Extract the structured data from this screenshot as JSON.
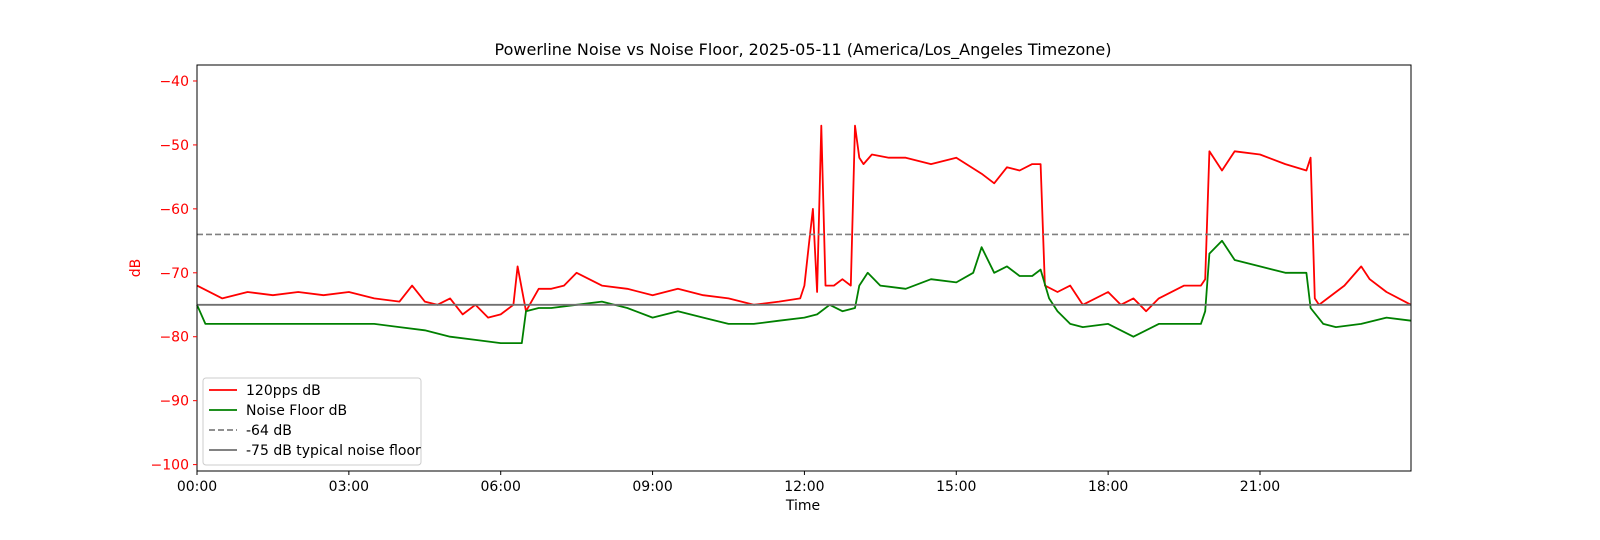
{
  "chart_data": {
    "type": "line",
    "title": "Powerline Noise vs Noise Floor, 2025-05-11 (America/Los_Angeles Timezone)",
    "xlabel": "Time",
    "ylabel": "dB",
    "ylabel_color": "#ff0000",
    "ylim": [
      -101,
      -37.5
    ],
    "xlim": [
      "00:00",
      "23:59"
    ],
    "yticks": [
      -40,
      -50,
      -60,
      -70,
      -80,
      -90,
      -100
    ],
    "ytick_labels": [
      "−40",
      "−50",
      "−60",
      "−70",
      "−80",
      "−90",
      "−100"
    ],
    "xtick_labels": [
      "00:00",
      "03:00",
      "06:00",
      "09:00",
      "12:00",
      "15:00",
      "18:00",
      "21:00"
    ],
    "grid": false,
    "legend_position": "lower-left",
    "series": [
      {
        "name": "120pps dB",
        "color": "#ff0000",
        "style": "solid",
        "x": [
          "00:00",
          "00:30",
          "01:00",
          "01:30",
          "02:00",
          "02:30",
          "03:00",
          "03:30",
          "04:00",
          "04:15",
          "04:30",
          "04:45",
          "05:00",
          "05:15",
          "05:30",
          "05:45",
          "06:00",
          "06:15",
          "06:20",
          "06:30",
          "06:45",
          "07:00",
          "07:15",
          "07:30",
          "08:00",
          "08:30",
          "09:00",
          "09:30",
          "10:00",
          "10:30",
          "11:00",
          "11:30",
          "11:55",
          "12:00",
          "12:05",
          "12:10",
          "12:15",
          "12:20",
          "12:25",
          "12:30",
          "12:35",
          "12:45",
          "12:55",
          "13:00",
          "13:05",
          "13:10",
          "13:20",
          "13:40",
          "14:00",
          "14:30",
          "15:00",
          "15:30",
          "15:45",
          "16:00",
          "16:15",
          "16:30",
          "16:40",
          "16:45",
          "17:00",
          "17:15",
          "17:30",
          "18:00",
          "18:15",
          "18:30",
          "18:45",
          "19:00",
          "19:30",
          "19:50",
          "19:55",
          "20:00",
          "20:15",
          "20:30",
          "21:00",
          "21:30",
          "21:55",
          "22:00",
          "22:05",
          "22:10",
          "22:20",
          "22:40",
          "23:00",
          "23:10",
          "23:30",
          "23:59"
        ],
        "values": [
          -72,
          -74,
          -73,
          -73.5,
          -73,
          -73.5,
          -73,
          -74,
          -74.5,
          -72,
          -74.5,
          -75,
          -74,
          -76.5,
          -75,
          -77,
          -76.5,
          -75,
          -69,
          -76,
          -72.5,
          -72.5,
          -72,
          -70,
          -72,
          -72.5,
          -73.5,
          -72.5,
          -73.5,
          -74,
          -75,
          -74.5,
          -74,
          -72,
          -66,
          -60,
          -73,
          -47,
          -72,
          -72,
          -72,
          -71,
          -72,
          -47,
          -52,
          -53,
          -51.5,
          -52,
          -52,
          -53,
          -52,
          -54.5,
          -56,
          -53.5,
          -54,
          -53,
          -53,
          -72,
          -73,
          -72,
          -75,
          -73,
          -75,
          -74,
          -76,
          -74,
          -72,
          -72,
          -71,
          -51,
          -54,
          -51,
          -51.5,
          -53,
          -54,
          -52,
          -74,
          -75,
          -74,
          -72,
          -69,
          -71,
          -73,
          -75
        ]
      },
      {
        "name": "Noise Floor dB",
        "color": "#008000",
        "style": "solid",
        "x": [
          "00:00",
          "00:10",
          "01:00",
          "02:00",
          "03:00",
          "03:30",
          "04:00",
          "04:30",
          "05:00",
          "05:30",
          "06:00",
          "06:25",
          "06:30",
          "06:45",
          "07:00",
          "07:30",
          "08:00",
          "08:30",
          "09:00",
          "09:30",
          "10:00",
          "10:30",
          "11:00",
          "11:30",
          "12:00",
          "12:15",
          "12:30",
          "12:45",
          "13:00",
          "13:05",
          "13:15",
          "13:30",
          "14:00",
          "14:30",
          "15:00",
          "15:20",
          "15:30",
          "15:45",
          "16:00",
          "16:15",
          "16:30",
          "16:40",
          "16:50",
          "17:00",
          "17:15",
          "17:30",
          "18:00",
          "18:30",
          "19:00",
          "19:30",
          "19:50",
          "19:55",
          "20:00",
          "20:15",
          "20:30",
          "21:00",
          "21:30",
          "21:55",
          "22:00",
          "22:15",
          "22:30",
          "23:00",
          "23:30",
          "23:59"
        ],
        "values": [
          -75,
          -78,
          -78,
          -78,
          -78,
          -78,
          -78.5,
          -79,
          -80,
          -80.5,
          -81,
          -81,
          -76,
          -75.5,
          -75.5,
          -75,
          -74.5,
          -75.5,
          -77,
          -76,
          -77,
          -78,
          -78,
          -77.5,
          -77,
          -76.5,
          -75,
          -76,
          -75.5,
          -72,
          -70,
          -72,
          -72.5,
          -71,
          -71.5,
          -70,
          -66,
          -70,
          -69,
          -70.5,
          -70.5,
          -69.5,
          -74,
          -76,
          -78,
          -78.5,
          -78,
          -80,
          -78,
          -78,
          -78,
          -76,
          -67,
          -65,
          -68,
          -69,
          -70,
          -70,
          -75.5,
          -78,
          -78.5,
          -78,
          -77,
          -77.5
        ]
      },
      {
        "name": "-64 dB",
        "color": "#808080",
        "style": "dashed",
        "x": [
          "00:00",
          "23:59"
        ],
        "values": [
          -64,
          -64
        ]
      },
      {
        "name": "-75 dB typical noise floor",
        "color": "#707070",
        "style": "solid",
        "x": [
          "00:00",
          "23:59"
        ],
        "values": [
          -75,
          -75
        ]
      }
    ]
  }
}
